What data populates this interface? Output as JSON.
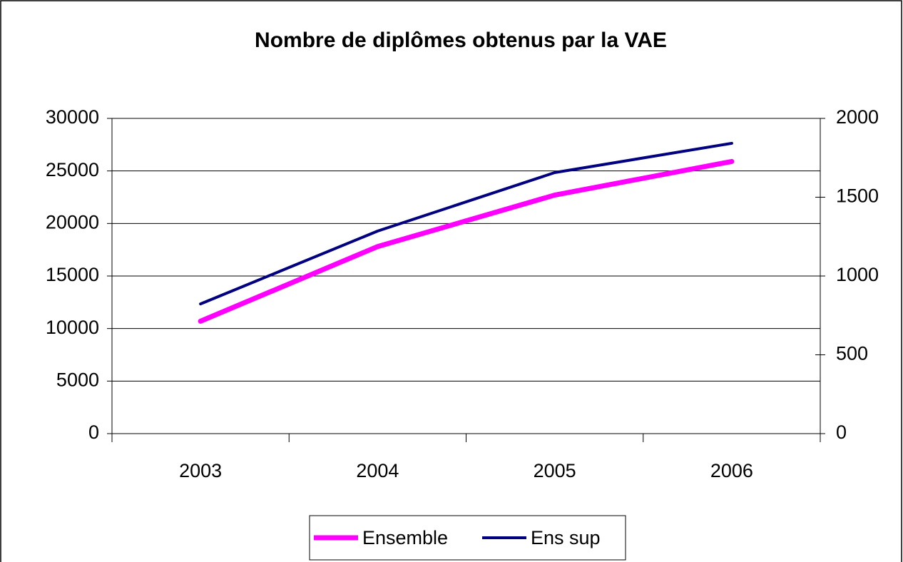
{
  "chart_data": {
    "type": "line",
    "title": "Nombre de diplômes obtenus par la VAE",
    "categories": [
      "2003",
      "2004",
      "2005",
      "2006"
    ],
    "series": [
      {
        "name": "Ensemble",
        "color": "#ff00ff",
        "values": [
          10700,
          17800,
          22700,
          25900
        ]
      },
      {
        "name": "Ens sup",
        "color": "#000080",
        "axis": "y2",
        "values": [
          823,
          1285,
          1656,
          1842
        ]
      }
    ],
    "ylim": [
      0,
      30000
    ],
    "yticks": [
      0,
      5000,
      10000,
      15000,
      20000,
      25000,
      30000
    ],
    "y2lim": [
      0,
      2000
    ],
    "y2ticks": [
      0,
      500,
      1000,
      1500,
      2000
    ],
    "grid": true,
    "legend": "bottom"
  }
}
